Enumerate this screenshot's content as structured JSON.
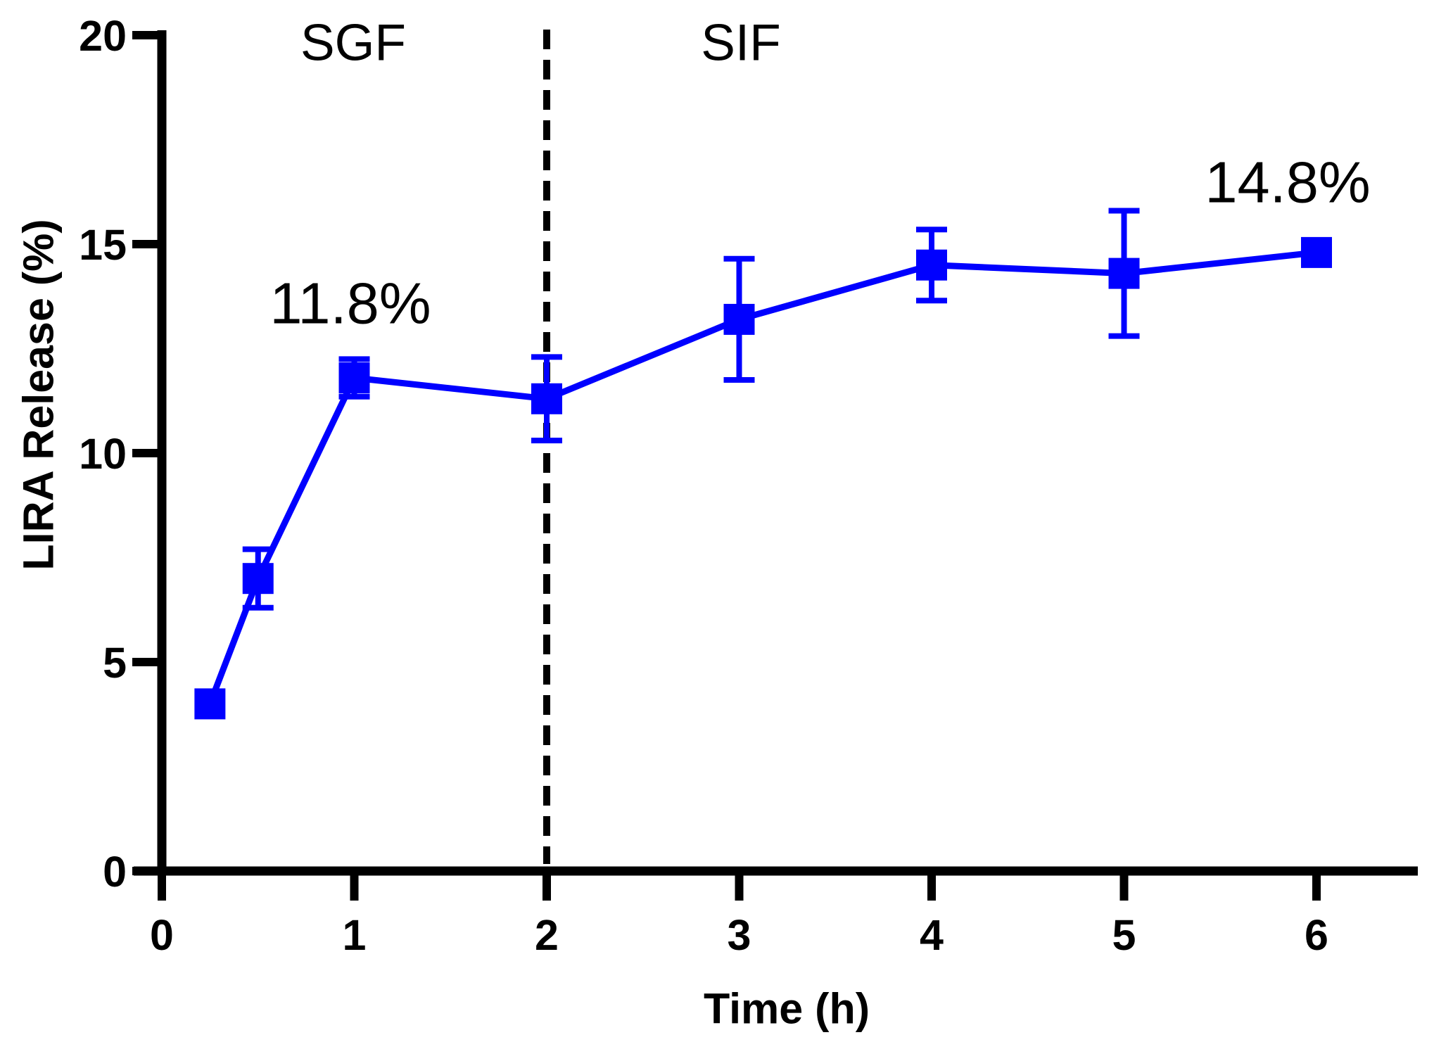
{
  "chart_data": {
    "type": "line",
    "title": "",
    "xlabel": "Time (h)",
    "ylabel": "LIRA Release (%)",
    "x": [
      0.25,
      0.5,
      1,
      2,
      3,
      4,
      5,
      6
    ],
    "series": [
      {
        "name": "LIRA Release",
        "color": "#0000ff",
        "marker": "filled-square",
        "values": [
          4.0,
          7.0,
          11.8,
          11.3,
          13.2,
          14.5,
          14.3,
          14.8
        ],
        "errors": [
          0,
          0.7,
          0.45,
          1.0,
          1.45,
          0.85,
          1.5,
          0
        ]
      }
    ],
    "x_ticks": [
      0,
      1,
      2,
      3,
      4,
      5,
      6
    ],
    "y_ticks": [
      0,
      5,
      10,
      15,
      20
    ],
    "xlim": [
      -0.15,
      6.53
    ],
    "ylim": [
      0,
      20
    ],
    "grid": false,
    "legend": "none",
    "axis_color": "#000000",
    "background": "#ffffff",
    "phase_divider": {
      "x": 2,
      "line_style": "dashed",
      "color": "#000000"
    },
    "annotations": [
      {
        "text": "SGF",
        "x": 1,
        "role": "phase-label-left-of-divider"
      },
      {
        "text": "SIF",
        "x": 3,
        "role": "phase-label-right-of-divider"
      },
      {
        "text": "11.8%",
        "x": 1,
        "role": "value-callout"
      },
      {
        "text": "14.8%",
        "x": 6,
        "role": "value-callout"
      }
    ]
  }
}
